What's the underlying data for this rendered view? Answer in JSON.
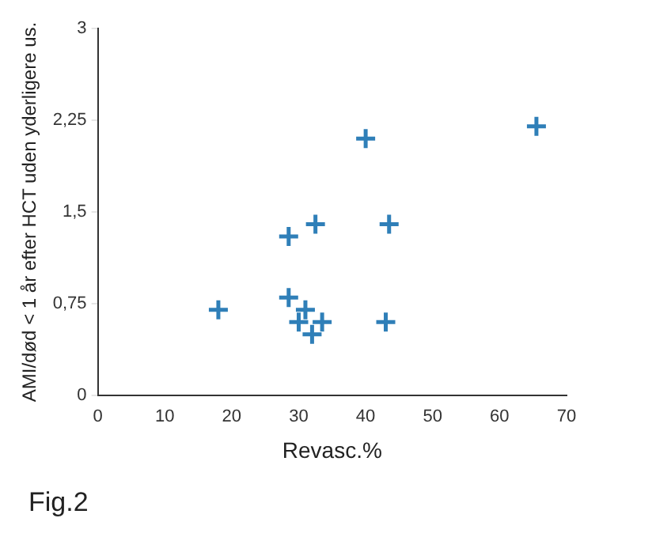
{
  "chart_data": {
    "type": "scatter",
    "xlabel": "Revasc.%",
    "ylabel": "AMI/død < 1 år efter HCT uden yderligere us.",
    "x": [
      18,
      28.5,
      28.5,
      30,
      31,
      32,
      33.5,
      32.5,
      40,
      43.5,
      43,
      65.5
    ],
    "values": [
      0.7,
      1.3,
      0.8,
      0.6,
      0.7,
      0.5,
      0.6,
      1.4,
      2.1,
      1.4,
      0.6,
      2.2
    ],
    "color": "#2f7fb8",
    "marker": "cross",
    "grid": false,
    "legend": false,
    "xlim": [
      0,
      70
    ],
    "xticks": [
      0,
      10,
      20,
      30,
      40,
      50,
      60,
      70
    ],
    "ylim": [
      0,
      3
    ],
    "yticks": [
      0,
      {
        "value": 0.75,
        "label": "0,75"
      },
      {
        "value": 1.5,
        "label": "1,5"
      },
      {
        "value": 2.25,
        "label": "2,25"
      },
      3
    ],
    "annotations": [
      "Fig.2"
    ]
  }
}
